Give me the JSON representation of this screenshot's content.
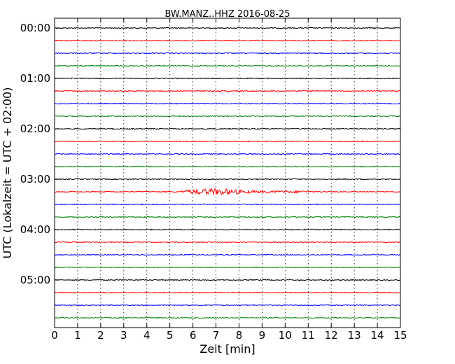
{
  "chart_data": {
    "type": "line",
    "title": "BW.MANZ..HHZ 2016-08-25",
    "xlabel": "Zeit  [min]",
    "ylabel": "UTC (Lokalzeit = UTC + 02:00)",
    "xlim": [
      0,
      15
    ],
    "x_ticks": [
      "0",
      "1",
      "2",
      "3",
      "4",
      "5",
      "6",
      "7",
      "8",
      "9",
      "10",
      "11",
      "12",
      "13",
      "14",
      "15"
    ],
    "y_ticks": [
      "00:00",
      "01:00",
      "02:00",
      "03:00",
      "04:00",
      "05:00"
    ],
    "grid": "vertical dotted at each minute",
    "trace_interval_min": 15,
    "trace_count": 24,
    "trace_colors": [
      "#000000",
      "#ff0000",
      "#0000ff",
      "#008000"
    ],
    "event": {
      "trace_start": "03:15",
      "x_start_min": 5.5,
      "x_end_min": 11.0,
      "peak_x_min": 7.0,
      "color": "#ff0000"
    }
  }
}
